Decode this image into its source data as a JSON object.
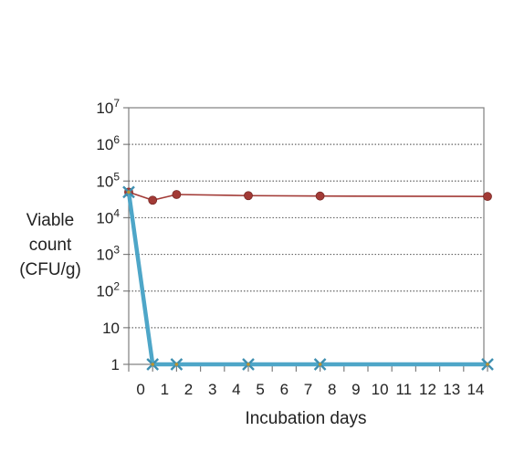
{
  "chart_data": {
    "type": "line",
    "xlabel": "Incubation days",
    "ylabel_lines": [
      "Viable",
      "count",
      "(CFU/g)"
    ],
    "y_scale": "log",
    "ylim": [
      1,
      10000000
    ],
    "y_ticks": [
      {
        "value": 1,
        "label": "1",
        "sup": ""
      },
      {
        "value": 10,
        "label": "10",
        "sup": ""
      },
      {
        "value": 100,
        "label": "10",
        "sup": "2"
      },
      {
        "value": 1000,
        "label": "10",
        "sup": "3"
      },
      {
        "value": 10000,
        "label": "10",
        "sup": "4"
      },
      {
        "value": 100000,
        "label": "10",
        "sup": "5"
      },
      {
        "value": 1000000,
        "label": "10",
        "sup": "6"
      },
      {
        "value": 10000000,
        "label": "10",
        "sup": "7"
      }
    ],
    "x_ticks": [
      "0",
      "1",
      "2",
      "3",
      "4",
      "5",
      "6",
      "7",
      "8",
      "9",
      "10",
      "11",
      "12",
      "13",
      "14"
    ],
    "grid": "horizontal-dotted",
    "series": [
      {
        "color": "#a23a36",
        "marker": "circle",
        "points": [
          {
            "x": -1,
            "y": 50000
          },
          {
            "x": 0,
            "y": 30000
          },
          {
            "x": 1,
            "y": 43000
          },
          {
            "x": 4,
            "y": 40000
          },
          {
            "x": 7,
            "y": 39000
          },
          {
            "x": 14,
            "y": 38000
          }
        ]
      },
      {
        "color": "#4ea6c8",
        "marker": "x",
        "points": [
          {
            "x": -1,
            "y": 50000
          },
          {
            "x": 0,
            "y": 1
          },
          {
            "x": 1,
            "y": 1
          },
          {
            "x": 4,
            "y": 1
          },
          {
            "x": 7,
            "y": 1
          },
          {
            "x": 14,
            "y": 1
          }
        ]
      }
    ]
  }
}
